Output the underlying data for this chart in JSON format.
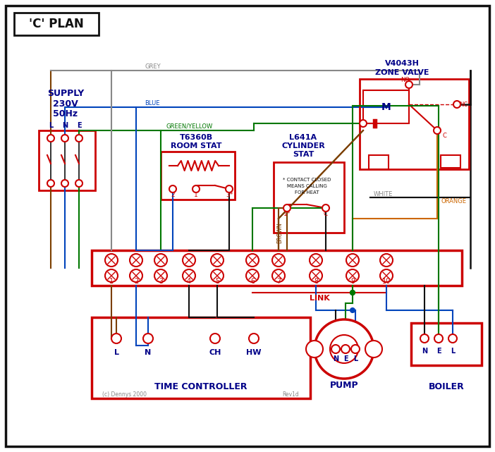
{
  "title": "'C' PLAN",
  "bg": "#ffffff",
  "red": "#cc0000",
  "blue": "#0044bb",
  "green": "#007700",
  "grey": "#888888",
  "brown": "#7B3F00",
  "orange": "#cc6600",
  "black": "#111111",
  "dark_blue": "#000088",
  "supply_lines": [
    "SUPPLY",
    "230V",
    "50Hz"
  ],
  "lne": [
    "L",
    "N",
    "E"
  ],
  "zone_title": [
    "V4043H",
    "ZONE VALVE"
  ],
  "room_stat_title": [
    "T6360B",
    "ROOM STAT"
  ],
  "cyl_stat_title": [
    "L641A",
    "CYLINDER",
    "STAT"
  ],
  "term_labels": [
    "1",
    "2",
    "3",
    "4",
    "5",
    "6",
    "7",
    "8",
    "9",
    "10"
  ],
  "tc_labels": [
    "L",
    "N",
    "CH",
    "HW"
  ],
  "tc_title": "TIME CONTROLLER",
  "pump_title": "PUMP",
  "boiler_title": "BOILER",
  "pump_labels": [
    "N",
    "E",
    "L"
  ],
  "boiler_labels": [
    "N",
    "E",
    "L"
  ],
  "link_label": "LINK",
  "copyright": "(c) Dennys 2000",
  "rev": "Rev1d",
  "note_lines": [
    "* CONTACT CLOSED",
    "MEANS CALLING",
    "FOR HEAT"
  ],
  "bus_labels": [
    "GREY",
    "BLUE",
    "GREEN/YELLOW"
  ],
  "brown_label": "BROWN",
  "white_label": "WHITE",
  "orange_label": "ORANGE"
}
